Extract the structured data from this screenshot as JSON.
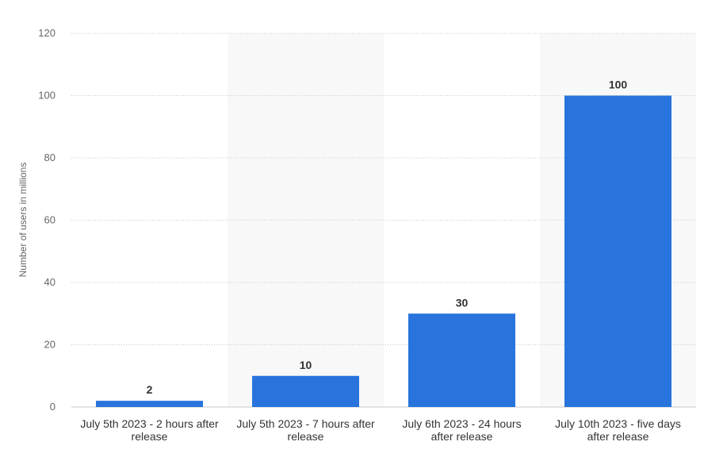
{
  "chart_data": {
    "type": "bar",
    "categories": [
      [
        "July 5th 2023 - 2 hours after",
        "release"
      ],
      [
        "July 5th 2023 - 7 hours after",
        "release"
      ],
      [
        "July 6th 2023 - 24 hours",
        "after release"
      ],
      [
        "July 10th 2023 - five days",
        "after release"
      ]
    ],
    "values": [
      2,
      10,
      30,
      100
    ],
    "ylabel": "Number of users in millions",
    "ylim": [
      0,
      120
    ],
    "yticks": [
      0,
      20,
      40,
      60,
      80,
      100,
      120
    ],
    "grid": true,
    "colors": {
      "bar": "#2874dc",
      "band": "#f8f8f8",
      "grid": "#c8c8c8"
    }
  }
}
